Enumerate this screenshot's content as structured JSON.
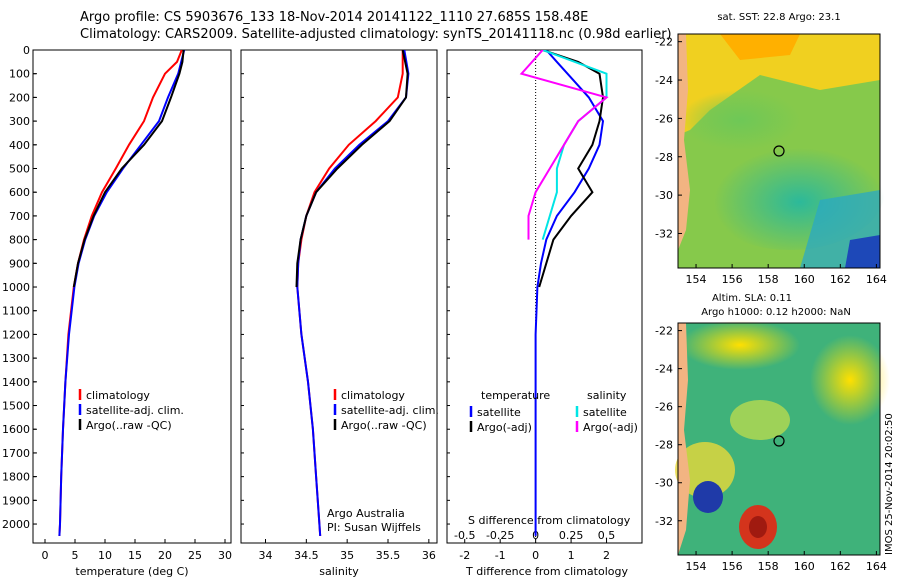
{
  "header": {
    "line1": "Argo profile: CS 5903676_133 18-Nov-2014 20141122_1110 27.685S 158.48E",
    "line2": "Climatology: CARS2009. Satellite-adjusted climatology: synTS_20141118.nc (0.98d earlier)"
  },
  "colors": {
    "climatology": "#ff0000",
    "satellite": "#0000ff",
    "argo": "#000000",
    "salinity_satellite": "#00e5e5",
    "salinity_argo": "#ff00ff"
  },
  "chart_data": [
    {
      "type": "line",
      "name": "temperature-profile",
      "xlabel": "temperature (deg C)",
      "ylabel": "",
      "xlim": [
        -2,
        31
      ],
      "ylim": [
        2080,
        0
      ],
      "y_reversed": true,
      "xticks": [
        0,
        5,
        10,
        15,
        20,
        25,
        30
      ],
      "yticks": [
        0,
        100,
        200,
        300,
        400,
        500,
        600,
        700,
        800,
        900,
        1000,
        1100,
        1200,
        1300,
        1400,
        1500,
        1600,
        1700,
        1800,
        1900,
        2000
      ],
      "legend_position": "lower-right",
      "series": [
        {
          "name": "climatology",
          "color": "#ff0000",
          "depth": [
            0,
            50,
            100,
            200,
            300,
            400,
            500,
            600,
            700,
            800,
            900,
            1000,
            1200,
            1400,
            1600,
            1800,
            2000,
            2050
          ],
          "values": [
            22.8,
            22,
            20,
            18,
            16.5,
            14,
            11.8,
            9.5,
            7.8,
            6.5,
            5.5,
            4.8,
            3.9,
            3.4,
            3.0,
            2.7,
            2.5,
            2.4
          ]
        },
        {
          "name": "satellite-adj. clim.",
          "color": "#0000ff",
          "depth": [
            0,
            50,
            100,
            200,
            300,
            400,
            500,
            600,
            700,
            800,
            900,
            1000,
            1200,
            1400,
            1600,
            1800,
            2000,
            2050
          ],
          "values": [
            23.2,
            22.7,
            22.2,
            20.5,
            19,
            16,
            13,
            10.3,
            8.2,
            6.7,
            5.6,
            4.9,
            4.0,
            3.4,
            3.0,
            2.7,
            2.5,
            2.4
          ]
        },
        {
          "name": "Argo(..raw -QC)",
          "color": "#000000",
          "depth": [
            0,
            50,
            100,
            200,
            300,
            400,
            500,
            600,
            700,
            800,
            900,
            1000
          ],
          "values": [
            23.1,
            22.9,
            22.4,
            21,
            19.5,
            16.5,
            12.8,
            10,
            8.1,
            6.6,
            5.5,
            4.8
          ]
        }
      ]
    },
    {
      "type": "line",
      "name": "salinity-profile",
      "xlabel": "salinity",
      "ylabel": "",
      "xlim": [
        33.7,
        36.1
      ],
      "ylim": [
        2080,
        0
      ],
      "y_reversed": true,
      "xticks": [
        34,
        34.5,
        35,
        35.5,
        36
      ],
      "legend_position": "lower-right",
      "annotations": [
        "Argo Australia",
        "PI: Susan Wijffels"
      ],
      "series": [
        {
          "name": "climatology",
          "color": "#ff0000",
          "depth": [
            0,
            100,
            200,
            300,
            400,
            500,
            600,
            700,
            800,
            900,
            1000,
            1200,
            1400,
            1600,
            1800,
            2000,
            2050
          ],
          "values": [
            35.68,
            35.68,
            35.62,
            35.35,
            35.02,
            34.78,
            34.6,
            34.5,
            34.44,
            34.4,
            34.39,
            34.44,
            34.52,
            34.58,
            34.62,
            34.66,
            34.67
          ]
        },
        {
          "name": "satellite-adj. clim.",
          "color": "#0000ff",
          "depth": [
            0,
            100,
            200,
            300,
            400,
            500,
            600,
            700,
            800,
            900,
            1000,
            1200,
            1400,
            1600,
            1800,
            2000,
            2050
          ],
          "values": [
            35.7,
            35.75,
            35.72,
            35.5,
            35.15,
            34.85,
            34.62,
            34.5,
            34.43,
            34.4,
            34.39,
            34.44,
            34.52,
            34.58,
            34.62,
            34.66,
            34.67
          ]
        },
        {
          "name": "Argo(..raw -QC)",
          "color": "#000000",
          "depth": [
            0,
            100,
            200,
            300,
            400,
            500,
            600,
            700,
            800,
            900,
            1000
          ],
          "values": [
            35.68,
            35.74,
            35.72,
            35.52,
            35.18,
            34.88,
            34.62,
            34.5,
            34.43,
            34.39,
            34.38
          ]
        }
      ]
    },
    {
      "type": "line",
      "name": "difference-profile",
      "xlabel": "T difference from climatology",
      "xlabel_top": "S difference from climatology",
      "xlim": [
        -2.5,
        3
      ],
      "ylim": [
        2080,
        0
      ],
      "y_reversed": true,
      "xticks": [
        -2,
        -1,
        0,
        1,
        2
      ],
      "xticks_salinity": [
        "-0.5",
        "-0.25",
        "0",
        "0.25",
        "0.5"
      ],
      "legend_position": "lower",
      "legend_groups": [
        "temperature",
        "salinity"
      ],
      "series": [
        {
          "name": "satellite",
          "group": "temperature",
          "color": "#0000ff",
          "depth": [
            0,
            50,
            100,
            150,
            200,
            300,
            400,
            500,
            600,
            700,
            800,
            900,
            1000,
            1200,
            1400,
            1600,
            1800,
            2000,
            2050
          ],
          "values": [
            0.3,
            0.6,
            0.9,
            1.2,
            1.5,
            1.9,
            1.8,
            1.5,
            1.1,
            0.6,
            0.3,
            0.15,
            0.05,
            0,
            0,
            0,
            0,
            0,
            0
          ]
        },
        {
          "name": "Argo(-adj)",
          "group": "temperature",
          "color": "#000000",
          "depth": [
            0,
            50,
            100,
            200,
            300,
            400,
            500,
            600,
            700,
            800,
            900,
            1000
          ],
          "values": [
            0.2,
            1.2,
            1.8,
            1.9,
            1.8,
            1.6,
            1.2,
            1.6,
            1.0,
            0.5,
            0.3,
            0.1
          ]
        },
        {
          "name": "satellite",
          "group": "salinity",
          "color": "#00e5e5",
          "depth": [
            0,
            100,
            200,
            300,
            400,
            500,
            600,
            700,
            800
          ],
          "values": [
            0.05,
            0.5,
            0.5,
            0.3,
            0.2,
            0.15,
            0.15,
            0.1,
            0.05
          ]
        },
        {
          "name": "Argo(-adj)",
          "group": "salinity",
          "color": "#ff00ff",
          "depth": [
            0,
            100,
            200,
            300,
            400,
            500,
            600,
            700,
            800
          ],
          "values": [
            0.05,
            -0.1,
            0.5,
            0.3,
            0.2,
            0.1,
            0.0,
            -0.05,
            -0.05
          ]
        }
      ]
    },
    {
      "type": "heatmap",
      "name": "sst-map",
      "title": "sat. SST: 22.8  Argo: 23.1",
      "xlim": [
        153,
        164.2
      ],
      "ylim": [
        -33.8,
        -21.6
      ],
      "xticks": [
        154,
        156,
        158,
        160,
        162,
        164
      ],
      "yticks": [
        -22,
        -24,
        -26,
        -28,
        -30,
        -32
      ],
      "argo_position": [
        158.48,
        -27.685
      ]
    },
    {
      "type": "heatmap",
      "name": "sla-map",
      "title": "Altim. SLA: 0.11",
      "subtitle": "Argo h1000: 0.12 h2000: NaN",
      "side_text": "IMOS 25-Nov-2014 20:02:50",
      "xlim": [
        153,
        164.2
      ],
      "ylim": [
        -33.8,
        -21.6
      ],
      "xticks": [
        154,
        156,
        158,
        160,
        162,
        164
      ],
      "yticks": [
        -22,
        -24,
        -26,
        -28,
        -30,
        -32
      ],
      "argo_position": [
        158.48,
        -27.685
      ]
    }
  ]
}
